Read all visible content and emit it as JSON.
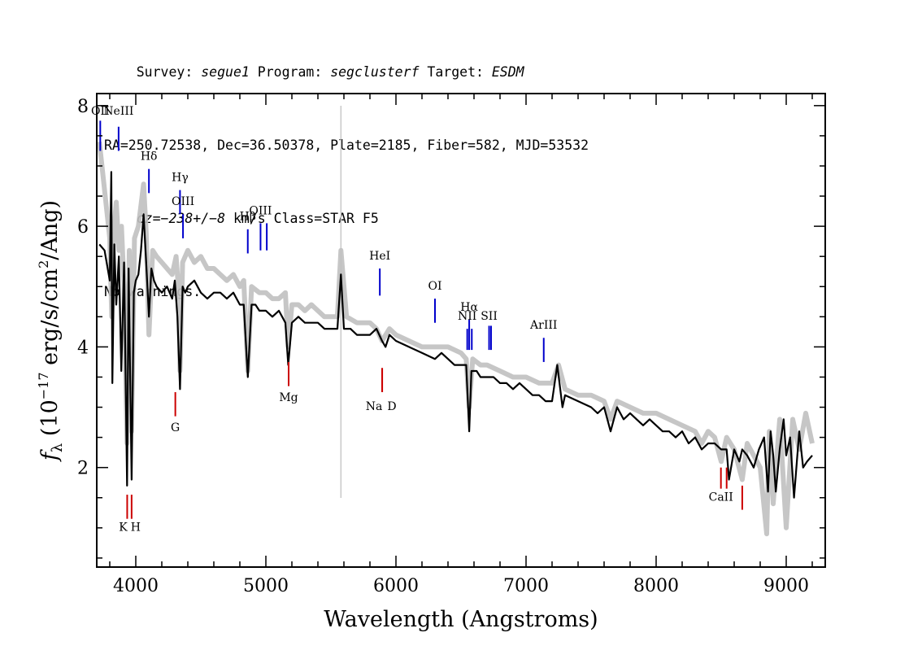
{
  "header": {
    "line1": [
      {
        "text": "Survey: ",
        "italic": false
      },
      {
        "text": "segue1",
        "italic": true
      },
      {
        "text": " Program: ",
        "italic": false
      },
      {
        "text": "segclusterf",
        "italic": true
      },
      {
        "text": " Target: ",
        "italic": false
      },
      {
        "text": "ESDM",
        "italic": true
      }
    ],
    "line2": "RA=250.72538, Dec=36.50378, Plate=2185, Fiber=582, MJD=53532",
    "line3": [
      {
        "text": "cz=−238+/−8",
        "italic": true
      },
      {
        "text": " km/s Class=STAR F5",
        "italic": false
      }
    ],
    "line4": "No warnings."
  },
  "chart_data": {
    "type": "line",
    "xlabel": "Wavelength (Angstroms)",
    "ylabel_main": "f",
    "ylabel_sub": "λ",
    "ylabel_rest": " (10",
    "ylabel_exp": "−17",
    "ylabel_mid": " erg/s/cm",
    "ylabel_exp2": "2",
    "ylabel_end": "/Ang)",
    "xlim": [
      3700,
      9300
    ],
    "ylim": [
      0.35,
      8.2
    ],
    "xticks": [
      4000,
      5000,
      6000,
      7000,
      8000,
      9000
    ],
    "yticks": [
      2,
      4,
      6,
      8
    ],
    "sky_line_x": 5577,
    "series": [
      {
        "role": "raw",
        "color": "#c0c0c0",
        "x": [
          3720,
          3760,
          3800,
          3815,
          3830,
          3850,
          3870,
          3890,
          3910,
          3933,
          3950,
          3968,
          3990,
          4020,
          4060,
          4080,
          4101,
          4130,
          4160,
          4200,
          4240,
          4280,
          4310,
          4330,
          4340,
          4360,
          4400,
          4450,
          4500,
          4550,
          4600,
          4650,
          4700,
          4750,
          4800,
          4830,
          4861,
          4890,
          4950,
          5000,
          5050,
          5100,
          5150,
          5172,
          5200,
          5250,
          5300,
          5350,
          5400,
          5450,
          5500,
          5550,
          5577,
          5620,
          5700,
          5800,
          5850,
          5893,
          5950,
          6000,
          6100,
          6200,
          6300,
          6400,
          6500,
          6540,
          6563,
          6590,
          6650,
          6700,
          6800,
          6900,
          7000,
          7100,
          7200,
          7250,
          7300,
          7400,
          7500,
          7600,
          7650,
          7700,
          7800,
          7900,
          8000,
          8100,
          8200,
          8300,
          8350,
          8400,
          8450,
          8500,
          8542,
          8600,
          8662,
          8700,
          8750,
          8800,
          8850,
          8870,
          8900,
          8950,
          9000,
          9050,
          9100,
          9150,
          9200
        ],
        "y": [
          7.4,
          6.6,
          5.8,
          4.5,
          5.9,
          6.4,
          5.6,
          6.0,
          5.0,
          2.4,
          5.6,
          2.6,
          5.8,
          6.0,
          6.7,
          5.9,
          4.2,
          5.6,
          5.5,
          5.4,
          5.3,
          5.2,
          5.5,
          4.9,
          3.6,
          5.4,
          5.6,
          5.4,
          5.5,
          5.3,
          5.3,
          5.2,
          5.1,
          5.2,
          5.0,
          5.1,
          3.6,
          5.0,
          4.9,
          4.9,
          4.8,
          4.8,
          4.9,
          4.0,
          4.7,
          4.7,
          4.6,
          4.7,
          4.6,
          4.5,
          4.5,
          4.5,
          5.6,
          4.5,
          4.4,
          4.4,
          4.3,
          4.1,
          4.3,
          4.2,
          4.1,
          4.0,
          4.0,
          4.0,
          3.9,
          3.8,
          3.0,
          3.8,
          3.7,
          3.7,
          3.6,
          3.5,
          3.5,
          3.4,
          3.4,
          3.7,
          3.3,
          3.2,
          3.2,
          3.1,
          2.8,
          3.1,
          3.0,
          2.9,
          2.9,
          2.8,
          2.7,
          2.6,
          2.4,
          2.6,
          2.5,
          2.1,
          2.5,
          2.3,
          1.8,
          2.4,
          2.2,
          2.0,
          0.9,
          2.6,
          1.4,
          2.8,
          1.0,
          2.8,
          2.3,
          2.9,
          2.4
        ]
      },
      {
        "role": "smoothed",
        "color": "#000000",
        "x": [
          3720,
          3760,
          3800,
          3812,
          3820,
          3835,
          3850,
          3870,
          3889,
          3910,
          3933,
          3945,
          3968,
          3985,
          4000,
          4020,
          4040,
          4060,
          4080,
          4101,
          4120,
          4140,
          4160,
          4200,
          4240,
          4280,
          4300,
          4320,
          4340,
          4360,
          4380,
          4400,
          4450,
          4500,
          4550,
          4600,
          4650,
          4700,
          4750,
          4800,
          4830,
          4861,
          4890,
          4920,
          4950,
          5000,
          5050,
          5100,
          5150,
          5172,
          5200,
          5250,
          5300,
          5350,
          5400,
          5450,
          5500,
          5550,
          5577,
          5600,
          5650,
          5700,
          5800,
          5850,
          5893,
          5920,
          5950,
          6000,
          6100,
          6200,
          6300,
          6350,
          6400,
          6450,
          6500,
          6540,
          6563,
          6580,
          6620,
          6650,
          6700,
          6750,
          6800,
          6850,
          6900,
          6950,
          7000,
          7050,
          7100,
          7150,
          7200,
          7240,
          7280,
          7300,
          7400,
          7500,
          7550,
          7600,
          7650,
          7700,
          7750,
          7800,
          7850,
          7900,
          7950,
          8000,
          8050,
          8100,
          8150,
          8200,
          8250,
          8300,
          8350,
          8400,
          8450,
          8500,
          8542,
          8560,
          8600,
          8640,
          8662,
          8700,
          8750,
          8790,
          8830,
          8860,
          8880,
          8900,
          8920,
          8950,
          8980,
          9000,
          9030,
          9060,
          9100,
          9130,
          9160,
          9200
        ],
        "y": [
          5.7,
          5.6,
          5.1,
          6.9,
          3.4,
          5.7,
          4.7,
          5.5,
          3.6,
          5.4,
          1.7,
          5.3,
          1.8,
          4.9,
          5.1,
          5.2,
          5.6,
          6.2,
          5.4,
          4.5,
          5.3,
          5.1,
          5.0,
          4.9,
          5.0,
          4.8,
          5.1,
          4.5,
          3.3,
          5.0,
          4.9,
          5.0,
          5.1,
          4.9,
          4.8,
          4.9,
          4.9,
          4.8,
          4.9,
          4.7,
          4.7,
          3.5,
          4.7,
          4.7,
          4.6,
          4.6,
          4.5,
          4.6,
          4.4,
          3.7,
          4.4,
          4.5,
          4.4,
          4.4,
          4.4,
          4.3,
          4.3,
          4.3,
          5.2,
          4.3,
          4.3,
          4.2,
          4.2,
          4.3,
          4.1,
          4.0,
          4.2,
          4.1,
          4.0,
          3.9,
          3.8,
          3.9,
          3.8,
          3.7,
          3.7,
          3.7,
          2.6,
          3.6,
          3.6,
          3.5,
          3.5,
          3.5,
          3.4,
          3.4,
          3.3,
          3.4,
          3.3,
          3.2,
          3.2,
          3.1,
          3.1,
          3.7,
          3.0,
          3.2,
          3.1,
          3.0,
          2.9,
          3.0,
          2.6,
          3.0,
          2.8,
          2.9,
          2.8,
          2.7,
          2.8,
          2.7,
          2.6,
          2.6,
          2.5,
          2.6,
          2.4,
          2.5,
          2.3,
          2.4,
          2.4,
          2.3,
          2.3,
          1.8,
          2.3,
          2.1,
          2.3,
          2.2,
          2.0,
          2.3,
          2.5,
          1.6,
          2.6,
          2.2,
          1.6,
          2.3,
          2.8,
          2.2,
          2.5,
          1.5,
          2.6,
          2.0,
          2.1,
          2.2
        ]
      }
    ],
    "emission_lines": [
      {
        "label": "OII",
        "x": 3727,
        "y_top": 7.25,
        "y_bot": 7.75,
        "label_y": 7.85
      },
      {
        "label": "NeIII",
        "x": 3868,
        "y_top": 7.25,
        "y_bot": 7.65,
        "label_y": 7.85
      },
      {
        "label": "Hδ",
        "x": 4101,
        "y_top": 6.55,
        "y_bot": 6.95,
        "label_y": 7.1
      },
      {
        "label": "Hγ",
        "x": 4340,
        "y_top": 6.2,
        "y_bot": 6.6,
        "label_y": 6.75
      },
      {
        "label": "OIII",
        "x": 4363,
        "y_top": 5.8,
        "y_bot": 6.2,
        "label_y": 6.35
      },
      {
        "label": "Hβ",
        "x": 4861,
        "y_top": 5.55,
        "y_bot": 5.95,
        "label_y": 6.1
      },
      {
        "label": "OIII",
        "x": 4959,
        "y_top": 5.6,
        "y_bot": 6.05,
        "label_y": 6.2
      },
      {
        "label": "OIII",
        "x": 5007,
        "y_top": 5.6,
        "y_bot": 6.05,
        "label_y": 6.2
      },
      {
        "label": "HeI",
        "x": 5876,
        "y_top": 4.85,
        "y_bot": 5.3,
        "label_y": 5.45
      },
      {
        "label": "OI",
        "x": 6300,
        "y_top": 4.4,
        "y_bot": 4.8,
        "label_y": 4.95
      },
      {
        "label": "NII",
        "x": 6548,
        "y_top": 3.95,
        "y_bot": 4.3,
        "label_y": 4.45
      },
      {
        "label": "Hα",
        "x": 6563,
        "y_top": 3.95,
        "y_bot": 4.45,
        "label_y": 4.6
      },
      {
        "label": "NII",
        "x": 6583,
        "y_top": 3.95,
        "y_bot": 4.3,
        "label_y": 4.45
      },
      {
        "label": "SII",
        "x": 6716,
        "y_top": 3.95,
        "y_bot": 4.35,
        "label_y": 4.45
      },
      {
        "label": "SII",
        "x": 6731,
        "y_top": 3.95,
        "y_bot": 4.35,
        "label_y": 4.45
      },
      {
        "label": "ArIII",
        "x": 7136,
        "y_top": 3.75,
        "y_bot": 4.15,
        "label_y": 4.3
      }
    ],
    "absorption_lines": [
      {
        "label": "K",
        "x": 3934,
        "y_top": 1.15,
        "y_bot": 1.55,
        "label_y": 0.95
      },
      {
        "label": "H",
        "x": 3968,
        "y_top": 1.15,
        "y_bot": 1.55,
        "label_y": 0.95
      },
      {
        "label": "G",
        "x": 4304,
        "y_top": 2.85,
        "y_bot": 3.25,
        "label_y": 2.6
      },
      {
        "label": "Mg",
        "x": 5175,
        "y_top": 3.35,
        "y_bot": 3.75,
        "label_y": 3.1
      },
      {
        "label": "Na",
        "x": 5894,
        "y_top": 3.25,
        "y_bot": 3.65,
        "label_y": 2.95
      },
      {
        "label": "D",
        "x": 5894,
        "y_top": 3.25,
        "y_bot": 3.65,
        "label_y": 2.95
      },
      {
        "label": "CaII",
        "x": 8498,
        "y_top": 1.65,
        "y_bot": 2.0,
        "label_y": 1.45
      },
      {
        "label": "CaII",
        "x": 8542,
        "y_top": 1.65,
        "y_bot": 2.0,
        "label_y": 1.45
      },
      {
        "label": "CaII",
        "x": 8662,
        "y_top": 1.3,
        "y_bot": 1.7,
        "label_y": 1.45
      }
    ],
    "colors": {
      "emission": "#0000cc",
      "absorption": "#cc0000",
      "sky_line": "#c8c8c8",
      "raw": "#c0c0c0",
      "smoothed": "#000000"
    }
  }
}
